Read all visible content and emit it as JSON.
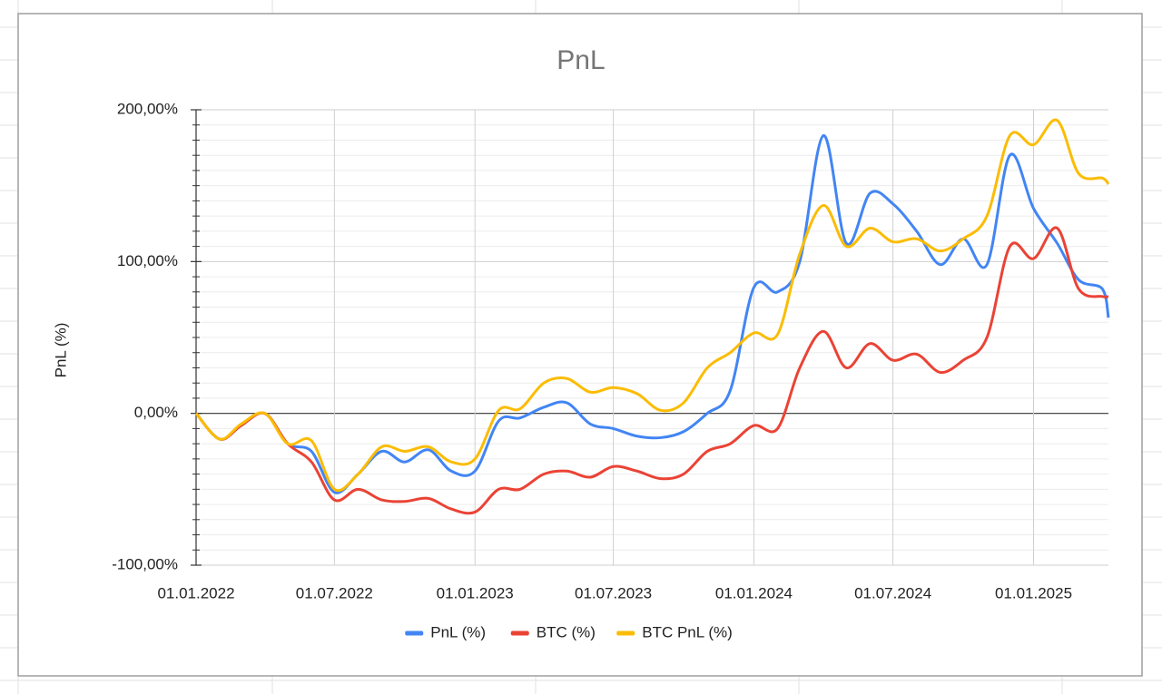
{
  "chart_data": {
    "type": "line",
    "title": "PnL",
    "y_label": "PnL (%)",
    "x": [
      "01.01.2022",
      "01.02.2022",
      "01.03.2022",
      "01.04.2022",
      "01.05.2022",
      "01.06.2022",
      "01.07.2022",
      "01.08.2022",
      "01.09.2022",
      "01.10.2022",
      "01.11.2022",
      "01.12.2022",
      "01.01.2023",
      "01.02.2023",
      "01.03.2023",
      "01.04.2023",
      "01.05.2023",
      "01.06.2023",
      "01.07.2023",
      "01.08.2023",
      "01.09.2023",
      "01.10.2023",
      "01.11.2023",
      "01.12.2023",
      "01.01.2024",
      "01.02.2024",
      "01.03.2024",
      "01.04.2024",
      "01.05.2024",
      "01.06.2024",
      "01.07.2024",
      "01.08.2024",
      "01.09.2024",
      "01.10.2024",
      "01.11.2024",
      "01.12.2024",
      "01.01.2025",
      "01.02.2025",
      "01.03.2025",
      "01.04.2025",
      "09.04.2025"
    ],
    "series": [
      {
        "name": "PnL (%)",
        "color": "#4285f4",
        "values": [
          0,
          -17,
          -8,
          0,
          -20,
          -25,
          -52,
          -40,
          -25,
          -32,
          -24,
          -38,
          -38,
          -5,
          -3,
          4,
          7,
          -7,
          -10,
          -15,
          -16,
          -12,
          0,
          15,
          83,
          80,
          100,
          183,
          112,
          145,
          138,
          120,
          98,
          115,
          98,
          170,
          135,
          112,
          88,
          82,
          63
        ]
      },
      {
        "name": "BTC (%)",
        "color": "#ea4335",
        "values": [
          0,
          -17,
          -8,
          0,
          -20,
          -32,
          -57,
          -50,
          -57,
          -58,
          -56,
          -63,
          -65,
          -50,
          -50,
          -40,
          -38,
          -42,
          -35,
          -38,
          -43,
          -40,
          -25,
          -20,
          -8,
          -10,
          30,
          54,
          30,
          46,
          35,
          39,
          27,
          35,
          50,
          110,
          102,
          122,
          82,
          77,
          77
        ]
      },
      {
        "name": "BTC PnL (%)",
        "color": "#fbbc04",
        "values": [
          0,
          -17,
          -7,
          0,
          -20,
          -18,
          -50,
          -40,
          -22,
          -25,
          -22,
          -32,
          -30,
          2,
          3,
          20,
          23,
          14,
          17,
          13,
          2,
          7,
          30,
          40,
          53,
          52,
          105,
          137,
          110,
          122,
          113,
          115,
          107,
          115,
          130,
          183,
          177,
          193,
          158,
          155,
          151
        ]
      }
    ],
    "xlim": [
      "01.01.2022",
      "09.04.2025"
    ],
    "xticks": [
      "01.01.2022",
      "01.07.2022",
      "01.01.2023",
      "01.07.2023",
      "01.01.2024",
      "01.07.2024",
      "01.01.2025"
    ],
    "ylim": [
      -100,
      200
    ],
    "yticks": [
      {
        "value": -100,
        "label": "-100,00%"
      },
      {
        "value": 0,
        "label": "0,00%"
      },
      {
        "value": 100,
        "label": "100,00%"
      },
      {
        "value": 200,
        "label": "200,00%"
      }
    ],
    "y_minor_ticks": [
      -90,
      -80,
      -70,
      -60,
      -50,
      -40,
      -30,
      -20,
      -10,
      10,
      20,
      30,
      40,
      50,
      60,
      70,
      80,
      90,
      110,
      120,
      130,
      140,
      150,
      160,
      170,
      180,
      190
    ],
    "grid": true,
    "legend": "bottom"
  }
}
